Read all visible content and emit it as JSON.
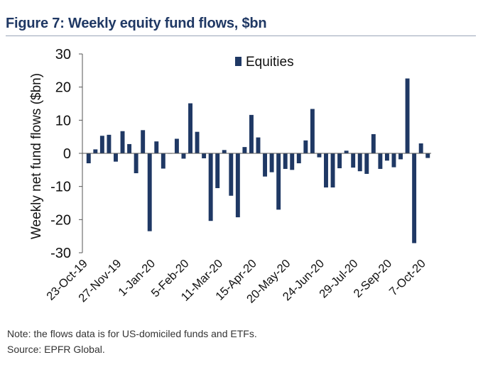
{
  "figure": {
    "title": "Figure 7: Weekly equity fund flows, $bn",
    "note": "Note: the flows data is for US-domiciled funds and ETFs.",
    "source": "Source: EPFR Global."
  },
  "colors": {
    "bar": "#1f3864",
    "title": "#1f3864",
    "axis": "#555555"
  },
  "chart_data": {
    "type": "bar",
    "title": "Weekly equity fund flows, $bn",
    "xlabel": "",
    "ylabel": "Weekly net fund flows ($bn)",
    "ylim": [
      -30,
      30
    ],
    "yticks": [
      30,
      20,
      10,
      0,
      -10,
      -20,
      -30
    ],
    "grid": false,
    "legend_position": "top-center",
    "x_tick_labels": [
      "23-Oct-19",
      "27-Nov-19",
      "1-Jan-20",
      "5-Feb-20",
      "11-Mar-20",
      "15-Apr-20",
      "20-May-20",
      "24-Jun-20",
      "29-Jul-20",
      "2-Sep-20",
      "7-Oct-20"
    ],
    "series": [
      {
        "name": "Equities",
        "values": [
          -3,
          1.2,
          5.3,
          5.6,
          -2.5,
          6.7,
          2.8,
          -6,
          7,
          -23.5,
          3.6,
          -4.6,
          0,
          4.4,
          -1.6,
          15.1,
          6.5,
          -1.5,
          -20.4,
          -10.5,
          1,
          -12.8,
          -19.3,
          1.9,
          11.6,
          4.8,
          -7,
          -5.7,
          -17,
          -4.7,
          -5,
          -3,
          3.9,
          13.4,
          -1.2,
          -10.3,
          -10.3,
          -4.5,
          0.8,
          -4.3,
          -5.4,
          -6.2,
          5.8,
          -4.7,
          -2.2,
          -4.2,
          -1.8,
          22.6,
          -27.1,
          3,
          -1.4
        ]
      }
    ]
  }
}
